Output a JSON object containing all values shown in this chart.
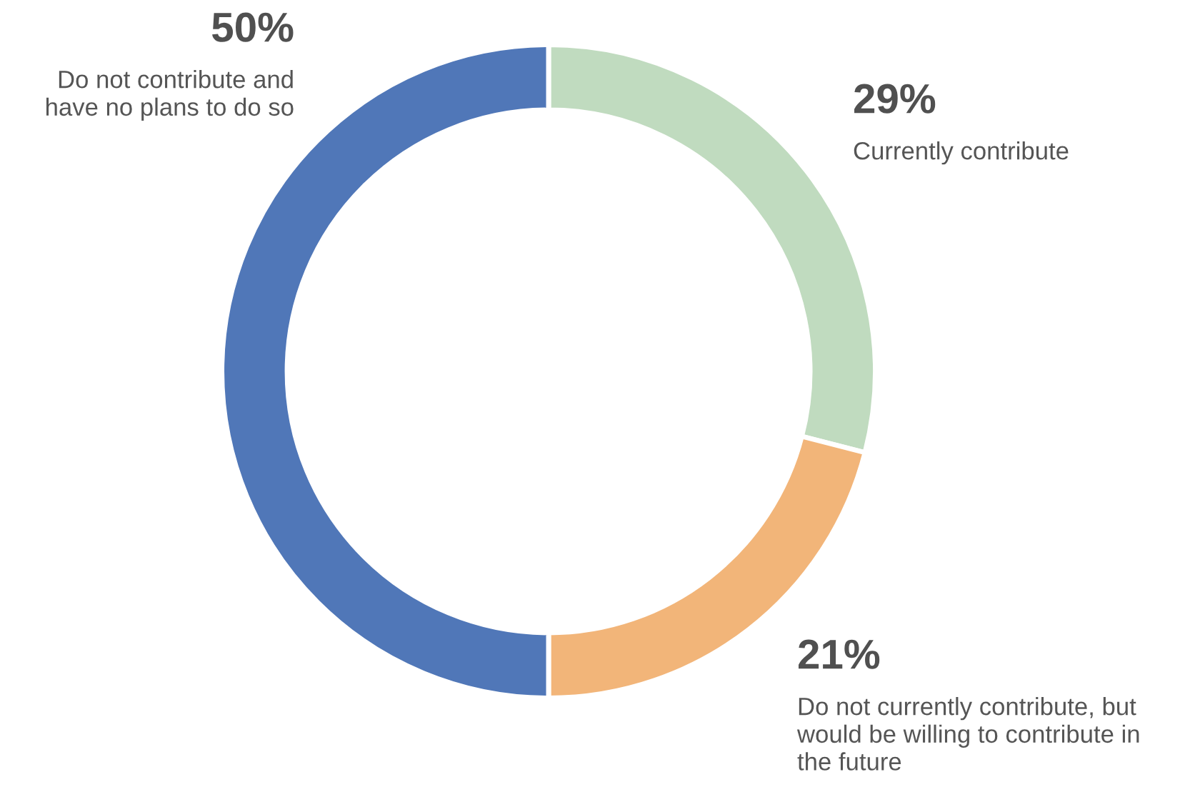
{
  "chart_data": {
    "type": "donut",
    "categories": [
      "Currently contribute",
      "Do not currently contribute, but\nwould be willing to contribute in\nthe future",
      "Do not contribute and\nhave no plans to do so"
    ],
    "values": [
      29,
      21,
      50
    ],
    "value_labels": [
      "29%",
      "21%",
      "50%"
    ],
    "colors": [
      "#c0dbbf",
      "#f2b579",
      "#5077b8"
    ],
    "legend": false
  }
}
